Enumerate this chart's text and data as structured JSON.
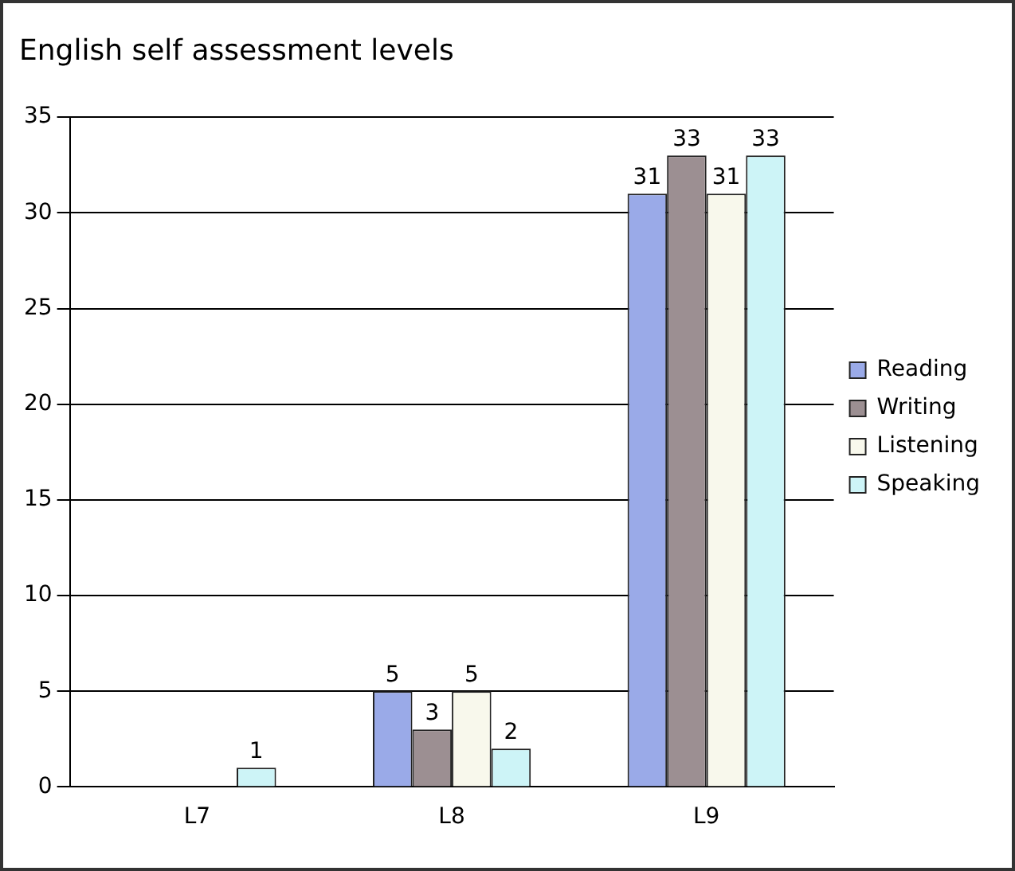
{
  "chart_data": {
    "type": "bar",
    "title": "English self assessment levels",
    "categories": [
      "L7",
      "L8",
      "L9"
    ],
    "series": [
      {
        "name": "Reading",
        "color": "#9aaae8",
        "values": [
          0,
          5,
          31
        ],
        "value_labels": [
          null,
          "5",
          "31"
        ]
      },
      {
        "name": "Writing",
        "color": "#9c8f92",
        "values": [
          0,
          3,
          33
        ],
        "value_labels": [
          null,
          "3",
          "33"
        ]
      },
      {
        "name": "Listening",
        "color": "#f8f8ec",
        "values": [
          0,
          5,
          31
        ],
        "value_labels": [
          null,
          "5",
          "31"
        ]
      },
      {
        "name": "Speaking",
        "color": "#cdf4f7",
        "values": [
          1,
          2,
          33
        ],
        "value_labels": [
          "1",
          "2",
          "33"
        ]
      }
    ],
    "ylim": [
      0,
      35
    ],
    "yticks": [
      0,
      5,
      10,
      15,
      20,
      25,
      30,
      35
    ],
    "grid": "y",
    "legend": "right"
  }
}
